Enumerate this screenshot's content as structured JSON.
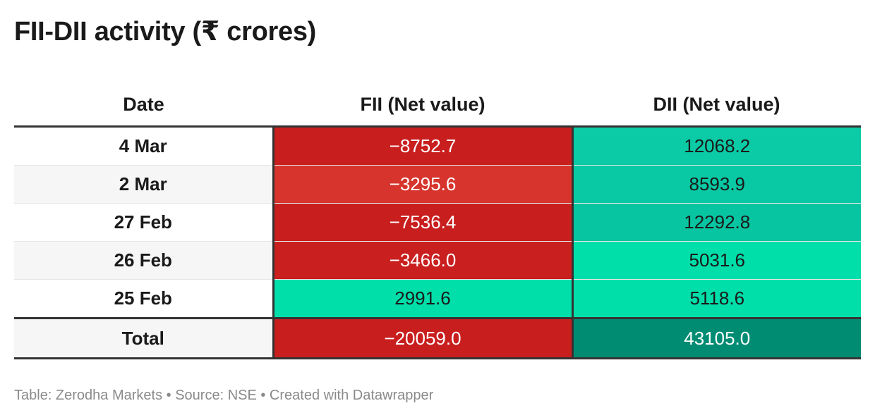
{
  "title": "FII-DII activity (₹ crores)",
  "footer": "Table: Zerodha Markets • Source: NSE • Created with Datawrapper",
  "colors": {
    "fii_strong": "#c91e1e",
    "fii_mid": "#d6342c",
    "dii_strong": "#0acba6",
    "dii_mid": "#08c5a1",
    "dii_light": "#00dea9",
    "total_dii": "#008c73"
  },
  "chart_data": {
    "type": "table",
    "title": "FII-DII activity (₹ crores)",
    "columns": [
      "Date",
      "FII (Net value)",
      "DII (Net value)"
    ],
    "rows": [
      {
        "date": "4 Mar",
        "fii": "−8752.7",
        "dii": "12068.2",
        "fii_value": -8752.7,
        "dii_value": 12068.2
      },
      {
        "date": "2 Mar",
        "fii": "−3295.6",
        "dii": "8593.9",
        "fii_value": -3295.6,
        "dii_value": 8593.9
      },
      {
        "date": "27 Feb",
        "fii": "−7536.4",
        "dii": "12292.8",
        "fii_value": -7536.4,
        "dii_value": 12292.8
      },
      {
        "date": "26 Feb",
        "fii": "−3466.0",
        "dii": "5031.6",
        "fii_value": -3466.0,
        "dii_value": 5031.6
      },
      {
        "date": "25 Feb",
        "fii": "2991.6",
        "dii": "5118.6",
        "fii_value": 2991.6,
        "dii_value": 5118.6
      }
    ],
    "total": {
      "date": "Total",
      "fii": "−20059.0",
      "dii": "43105.0",
      "fii_value": -20059.0,
      "dii_value": 43105.0
    }
  }
}
